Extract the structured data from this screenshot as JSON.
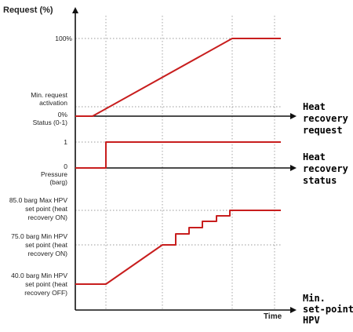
{
  "labels": {
    "y_axis_title": "Request (%)",
    "pct_100": "100%",
    "min_request_line1": "Min. request",
    "min_request_line2": "activation",
    "pct_0": "0%",
    "status_title": "Status (0-1)",
    "status_1": "1",
    "status_0": "0",
    "pressure_line1": "Pressure",
    "pressure_line2": "(barg)",
    "sp85_line1": "85.0 barg Max HPV",
    "sp85_line2": "set point (heat",
    "sp85_line3": "recovery ON)",
    "sp75_line1": "75.0 barg Min HPV",
    "sp75_line2": "set point (heat",
    "sp75_line3": "recovery ON)",
    "sp40_line1": "40.0 barg Min HPV",
    "sp40_line2": "set point (heat",
    "sp40_line3": "recovery OFF)",
    "time": "Time"
  },
  "side_labels": {
    "hr_request_line1": "Heat",
    "hr_request_line2": "recovery",
    "hr_request_line3": "request",
    "hr_status_line1": "Heat",
    "hr_status_line2": "recovery",
    "hr_status_line3": "status",
    "min_sp_line1": "Min.",
    "min_sp_line2": "set-point",
    "min_sp_line3": "HPV"
  },
  "colors": {
    "signal": "#c81e1e",
    "axis": "#111111",
    "grid": "#9a9a9a"
  }
}
